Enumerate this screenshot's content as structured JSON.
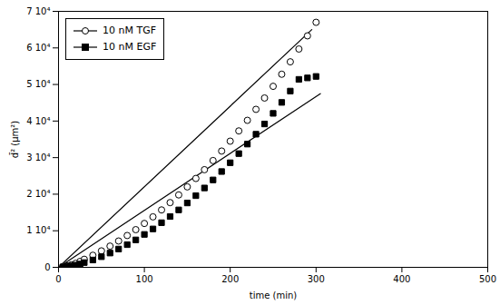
{
  "chart_data": {
    "type": "scatter",
    "xlabel": "time (min)",
    "ylabel": "d̄² (μm²)",
    "xlim": [
      0,
      500
    ],
    "ylim": [
      0,
      70000
    ],
    "xticks": [
      0,
      100,
      200,
      300,
      400,
      500
    ],
    "yticks": [
      0,
      {
        "value": 10000,
        "label": "1 10⁴"
      },
      {
        "value": 20000,
        "label": "2 10⁴"
      },
      {
        "value": 30000,
        "label": "3 10⁴"
      },
      {
        "value": 40000,
        "label": "4 10⁴"
      },
      {
        "value": 50000,
        "label": "5 10⁴"
      },
      {
        "value": 60000,
        "label": "6 10⁴"
      },
      {
        "value": 70000,
        "label": "7 10⁴"
      }
    ],
    "grid": false,
    "legend": "upper left",
    "series": [
      {
        "name": "10 nM TGF",
        "color": "#000000",
        "marker": "circle",
        "x": [
          5,
          10,
          15,
          20,
          25,
          30,
          40,
          50,
          60,
          70,
          80,
          90,
          100,
          110,
          120,
          130,
          140,
          150,
          160,
          170,
          180,
          190,
          200,
          210,
          220,
          230,
          240,
          250,
          260,
          270,
          280,
          290,
          300
        ],
        "values": [
          200,
          400,
          700,
          1100,
          1600,
          2200,
          3300,
          4500,
          5800,
          7200,
          8700,
          10300,
          12000,
          13800,
          15700,
          17700,
          19800,
          22000,
          24300,
          26700,
          29200,
          31800,
          34500,
          37300,
          40200,
          43200,
          46300,
          49500,
          52800,
          56200,
          59700,
          63300,
          67000
        ],
        "fit": {
          "x": [
            0,
            295
          ],
          "values": [
            0,
            65000
          ]
        }
      },
      {
        "name": "10 nM EGF",
        "color": "#000000",
        "marker": "square",
        "x": [
          5,
          10,
          15,
          20,
          25,
          30,
          40,
          50,
          60,
          70,
          80,
          90,
          100,
          110,
          120,
          130,
          140,
          150,
          160,
          170,
          180,
          190,
          200,
          210,
          220,
          230,
          240,
          250,
          260,
          270,
          280,
          290,
          300
        ],
        "values": [
          100,
          200,
          400,
          600,
          900,
          1300,
          2000,
          2900,
          3900,
          5000,
          6200,
          7500,
          9000,
          10500,
          12200,
          13900,
          15700,
          17600,
          19600,
          21700,
          23900,
          26200,
          28600,
          31100,
          33700,
          36400,
          39200,
          42100,
          45100,
          48200,
          51400,
          51800,
          52200
        ],
        "fit": {
          "x": [
            0,
            305
          ],
          "values": [
            0,
            47500
          ]
        }
      }
    ]
  }
}
